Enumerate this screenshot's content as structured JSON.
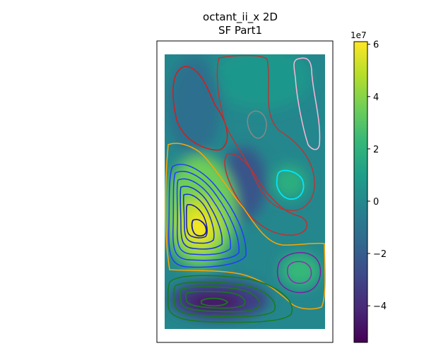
{
  "title_line1": "octant_ii_x 2D",
  "title_line2": "SF Part1",
  "colorbar": {
    "multiplier": "1e7",
    "min": -5.4,
    "max": 6.1,
    "ticks": [
      6,
      4,
      2,
      0,
      -2,
      -4
    ],
    "tick_labels": [
      "6",
      "4",
      "2",
      "0",
      "−2",
      "−4"
    ],
    "colormap": "viridis",
    "colormap_stops": [
      "#440154",
      "#482878",
      "#3e4989",
      "#31688e",
      "#26828e",
      "#1f9e89",
      "#35b779",
      "#6ece58",
      "#b5de2b",
      "#fde725"
    ]
  },
  "chart_data": {
    "type": "heatmap",
    "title": "octant_ii_x 2D\nSF Part1",
    "colormap": "viridis",
    "value_range": [
      -54000000,
      61000000
    ],
    "regions": [
      {
        "name": "max",
        "value": 60000000,
        "contour_color": "#1a1aa0"
      },
      {
        "name": "min",
        "value": -52000000,
        "contour_color": "#1a7a1a"
      },
      {
        "name": "mid-right cell",
        "value": 20000000,
        "contour_color": "#5a0a8a"
      },
      {
        "name": "upper-left cell",
        "value": -10000000,
        "contour_color": "#d81b1b"
      },
      {
        "name": "center cell",
        "value": -18000000,
        "contour_color": "#c03030"
      },
      {
        "name": "upper-right cell",
        "value": 8000000,
        "contour_color": "#b03a3a"
      }
    ],
    "contour_colors": [
      "#1a1aa0",
      "#0033ff",
      "#ffa500",
      "#d81b1b",
      "#b03a3a",
      "#ff99cc",
      "#00e5ff",
      "#808080",
      "#7b1fa2",
      "#1a7a1a"
    ]
  }
}
